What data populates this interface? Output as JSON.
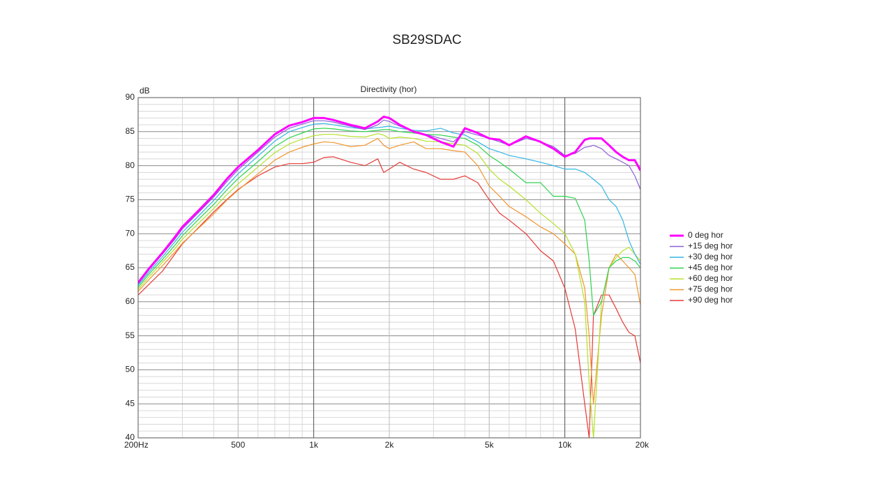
{
  "page_title": "SB29SDAC",
  "chart_data": {
    "type": "line",
    "title": "Directivity (hor)",
    "y_label": "dB",
    "x_scale": "log",
    "grid": true,
    "x": [
      200,
      220,
      250,
      280,
      300,
      350,
      400,
      450,
      500,
      600,
      700,
      800,
      900,
      1000,
      1100,
      1200,
      1400,
      1600,
      1800,
      1900,
      2000,
      2200,
      2500,
      2800,
      3200,
      3600,
      4000,
      4500,
      5000,
      5500,
      6000,
      7000,
      8000,
      9000,
      10000,
      11000,
      12000,
      12500,
      13000,
      14000,
      15000,
      16000,
      17000,
      18000,
      19000,
      20000
    ],
    "xlim": [
      200,
      20000
    ],
    "xticks": [
      {
        "value": 200,
        "label": "200Hz"
      },
      500,
      {
        "value": 1000,
        "label": "1k"
      },
      {
        "value": 2000,
        "label": "2k"
      },
      {
        "value": 5000,
        "label": "5k"
      },
      {
        "value": 10000,
        "label": "10k"
      },
      {
        "value": 20000,
        "label": "20k"
      }
    ],
    "ylim": [
      40,
      90
    ],
    "yticks": [
      40,
      45,
      50,
      55,
      60,
      65,
      70,
      75,
      80,
      85,
      90
    ],
    "legend": "right",
    "series": [
      {
        "name": "0 deg hor",
        "color": "#ff00ff",
        "values": [
          62.8,
          64.8,
          67.2,
          69.5,
          71,
          73.5,
          75.7,
          78,
          79.8,
          82.3,
          84.6,
          85.9,
          86.4,
          87,
          87,
          86.7,
          86,
          85.5,
          86.5,
          87.2,
          87,
          86,
          85,
          84.5,
          83.5,
          82.8,
          85.5,
          84.8,
          84,
          83.8,
          83,
          84.3,
          83.5,
          82.5,
          81.3,
          82,
          83.8,
          84,
          84,
          84,
          83,
          82,
          81.3,
          80.8,
          80.8,
          79.3
        ]
      },
      {
        "name": "+15 deg hor",
        "color": "#8a5fd6",
        "values": [
          62.6,
          64.6,
          67,
          69.2,
          70.7,
          73.2,
          75.4,
          77.6,
          79.4,
          82,
          84.2,
          85.5,
          86.1,
          86.6,
          86.6,
          86.4,
          85.8,
          85.3,
          86,
          86.7,
          86.5,
          85.8,
          85,
          84.6,
          84,
          83.5,
          85,
          84.5,
          84,
          83.5,
          83,
          84,
          83.5,
          82.8,
          81.5,
          81.8,
          82.7,
          82.8,
          83,
          82.5,
          81.5,
          81,
          80.5,
          80,
          78.5,
          76.5
        ]
      },
      {
        "name": "+30 deg hor",
        "color": "#33b5e5",
        "values": [
          62.4,
          64.3,
          66.6,
          68.8,
          70.2,
          72.7,
          74.9,
          77,
          78.8,
          81.4,
          83.6,
          85,
          85.6,
          86.1,
          86.2,
          86,
          85.6,
          85.4,
          85.6,
          85.7,
          85.8,
          85.5,
          85.2,
          85.1,
          85.5,
          84.8,
          84.5,
          83.5,
          82.5,
          82,
          81.5,
          81,
          80.5,
          80,
          79.5,
          79.5,
          79,
          78.5,
          78,
          77,
          75,
          74,
          72,
          69,
          67,
          65.5
        ]
      },
      {
        "name": "+45 deg hor",
        "color": "#2ed24f",
        "values": [
          62.1,
          64,
          66.2,
          68.3,
          69.7,
          72.2,
          74.3,
          76.4,
          78.1,
          80.6,
          82.8,
          84.1,
          84.8,
          85.4,
          85.5,
          85.4,
          85.1,
          85,
          85.2,
          85.3,
          85.3,
          85,
          84.8,
          84.6,
          84.5,
          84.2,
          84,
          83,
          81.5,
          80.5,
          79.5,
          77.5,
          77.5,
          75.5,
          75.5,
          75.2,
          72,
          66,
          58,
          60,
          65,
          66,
          66.5,
          66.5,
          66,
          65
        ]
      },
      {
        "name": "+60 deg hor",
        "color": "#b5e02a",
        "values": [
          61.8,
          63.6,
          65.8,
          67.8,
          69.2,
          71.6,
          73.7,
          75.7,
          77.3,
          79.8,
          81.9,
          83.2,
          83.9,
          84.4,
          84.6,
          84.6,
          84.3,
          84.2,
          84.7,
          84.5,
          84,
          84.2,
          84,
          83.6,
          83.5,
          83.2,
          83,
          81.8,
          79.5,
          78,
          77,
          75,
          73,
          71.5,
          70,
          67,
          60,
          48,
          40,
          60,
          65,
          66.5,
          67.5,
          68,
          67,
          66
        ]
      },
      {
        "name": "+75 deg hor",
        "color": "#f0962f",
        "values": [
          61.5,
          63.2,
          65.3,
          67.3,
          68.6,
          70.9,
          72.9,
          74.9,
          76.4,
          78.8,
          80.8,
          82,
          82.7,
          83.2,
          83.5,
          83.4,
          82.8,
          83,
          84,
          83,
          82.5,
          83,
          83.5,
          82.5,
          82.5,
          82.2,
          82,
          80,
          77,
          75.5,
          74,
          72.5,
          71,
          70,
          68.5,
          67,
          62,
          55,
          45,
          58,
          65,
          67,
          66,
          65,
          64,
          59.5
        ]
      },
      {
        "name": "+90 deg hor",
        "color": "#e53935",
        "values": [
          61,
          62.5,
          64.5,
          67,
          68.5,
          71,
          73.2,
          75,
          76.5,
          78.5,
          79.8,
          80.3,
          80.3,
          80.5,
          81.2,
          81.3,
          80.5,
          80,
          81,
          79,
          79.5,
          80.5,
          79.5,
          79,
          78,
          78,
          78.5,
          77.5,
          75,
          73,
          72,
          70,
          67.5,
          66,
          62,
          56,
          45,
          40,
          58,
          61,
          61,
          59,
          57,
          55.5,
          55,
          51
        ]
      }
    ]
  }
}
